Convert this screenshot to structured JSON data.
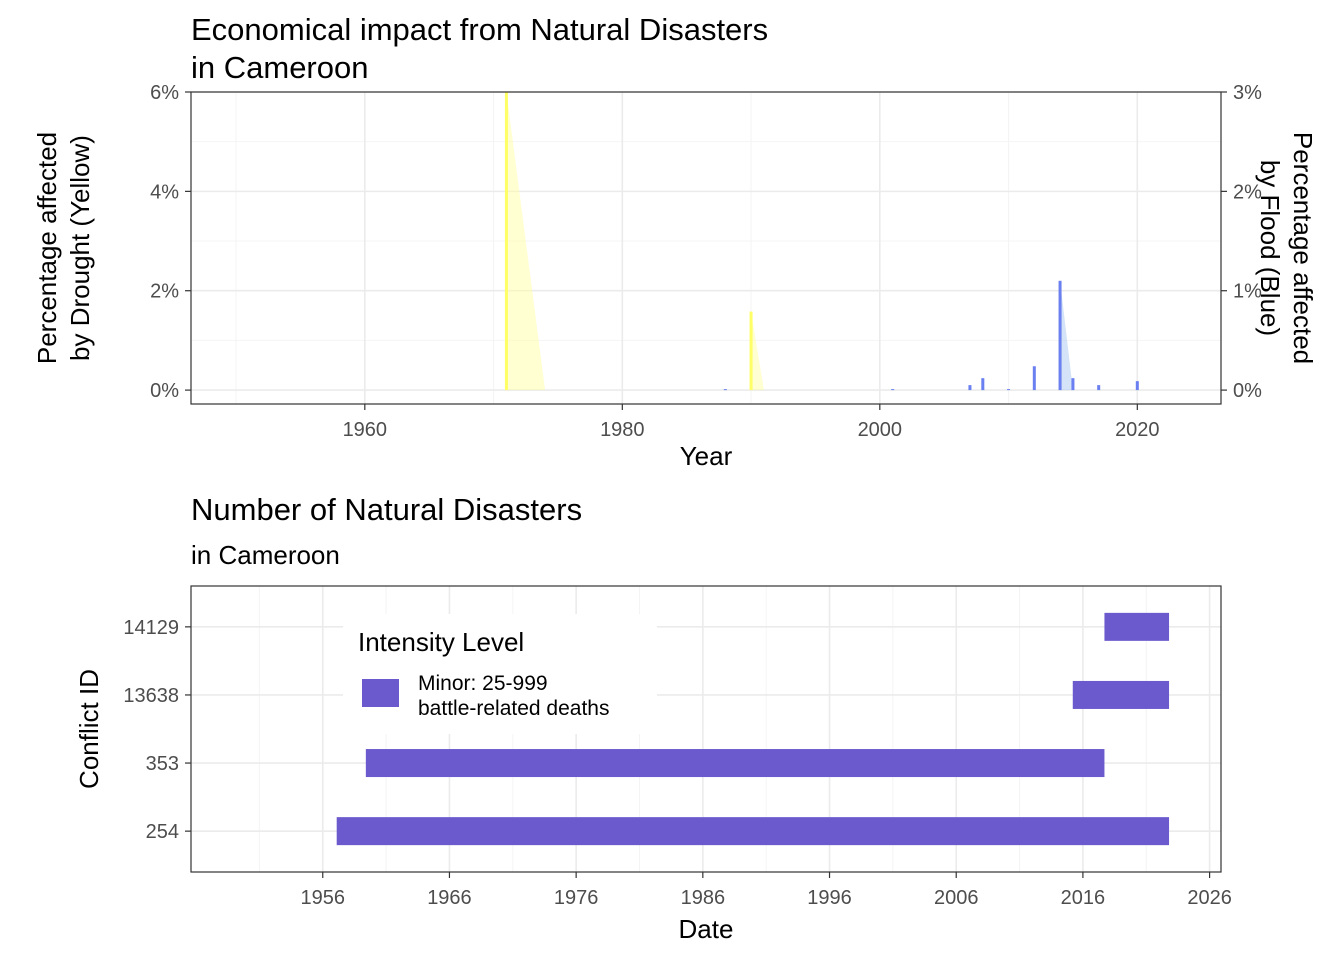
{
  "colors": {
    "drought": "#ffff66",
    "flood": "#6a7ff0",
    "conflict_bar": "#6a5acd",
    "grid_major": "#ebebeb",
    "grid_minor": "#f4f4f4",
    "panel_border": "#333333",
    "tick_text": "#4d4d4d"
  },
  "chart_data": [
    {
      "type": "bar",
      "title": [
        "Economical impact from Natural Disasters",
        "in Cameroon"
      ],
      "xlabel": "Year",
      "ylabel": [
        "Percentage affected",
        "by Drought (Yellow)"
      ],
      "ylabel_right": [
        "Percentage affected",
        "by Flood (Blue)"
      ],
      "xlim": [
        1946.5,
        2026.5
      ],
      "ylim": [
        -0.28,
        6.0
      ],
      "ylim_right": [
        -0.14,
        3.0
      ],
      "x_ticks": [
        1960,
        1980,
        2000,
        2020
      ],
      "x_minor_ticks": [
        1950,
        1970,
        1990,
        2010
      ],
      "y_ticks": [
        0,
        2,
        4,
        6
      ],
      "y_tick_labels": [
        "0%",
        "2%",
        "4%",
        "6%"
      ],
      "y_right_ticks": [
        0,
        1,
        2,
        3
      ],
      "y_right_tick_labels": [
        "0%",
        "1%",
        "2%",
        "3%"
      ],
      "grid": true,
      "series": [
        {
          "color": "yellow",
          "axis": "left",
          "x": [
            1971,
            1990
          ],
          "values": [
            6.0,
            1.58
          ]
        },
        {
          "color": "blue",
          "axis": "right",
          "x": [
            1988,
            2001,
            2007,
            2008,
            2010,
            2012,
            2014,
            2015,
            2017,
            2020
          ],
          "values": [
            0.01,
            0.01,
            0.05,
            0.12,
            0.01,
            0.24,
            1.1,
            0.12,
            0.05,
            0.09
          ]
        }
      ],
      "fade_areas": [
        {
          "color": "yellow",
          "x": [
            1971,
            1974
          ],
          "values": [
            6.0,
            0
          ]
        },
        {
          "color": "yellow",
          "x": [
            1990,
            1991
          ],
          "values": [
            1.58,
            0
          ]
        },
        {
          "color": "blue",
          "x": [
            2014,
            2015
          ],
          "values": [
            1.1,
            0
          ]
        }
      ]
    },
    {
      "type": "gantt",
      "title": "Number of Natural Disasters",
      "subtitle": "in Cameroon",
      "xlabel": "Date",
      "ylabel": "Conflict ID",
      "xlim": [
        1945.6,
        2026.9
      ],
      "x_ticks": [
        1956,
        1966,
        1976,
        1986,
        1996,
        2006,
        2016,
        2026
      ],
      "x_minor_ticks": [
        1951,
        1961,
        1971,
        1981,
        1991,
        2001,
        2011,
        2021
      ],
      "categories": [
        "254",
        "353",
        "13638",
        "14129"
      ],
      "grid": true,
      "bars": [
        {
          "id": "254",
          "start": 1957.1,
          "end": 2022.8
        },
        {
          "id": "353",
          "start": 1959.4,
          "end": 2017.7
        },
        {
          "id": "13638",
          "start": 2015.2,
          "end": 2022.8
        },
        {
          "id": "14129",
          "start": 2017.7,
          "end": 2022.8
        }
      ],
      "legend": {
        "title": "Intensity Level",
        "entries": [
          {
            "label": [
              "Minor: 25-999",
              "battle-related deaths"
            ]
          }
        ],
        "position": "top-left inside"
      }
    }
  ]
}
